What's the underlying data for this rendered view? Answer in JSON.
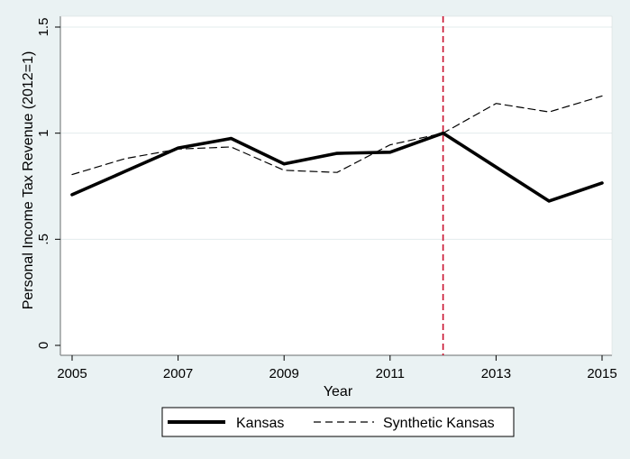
{
  "chart_data": {
    "type": "line",
    "title": "",
    "xlabel": "Year",
    "ylabel": "Personal Income Tax Revenue (2012=1)",
    "x": [
      2005,
      2006,
      2007,
      2008,
      2009,
      2010,
      2011,
      2012,
      2013,
      2014,
      2015
    ],
    "xlim": [
      2005,
      2015
    ],
    "ylim": [
      0,
      1.5
    ],
    "x_ticks": [
      2005,
      2007,
      2009,
      2011,
      2013,
      2015
    ],
    "x_tick_labels": [
      "2005",
      "2007",
      "2009",
      "2011",
      "2013",
      "2015"
    ],
    "y_ticks": [
      0,
      0.5,
      1,
      1.5
    ],
    "y_tick_labels": [
      "0",
      ".5",
      "1",
      "1.5"
    ],
    "grid": true,
    "legend_position": "bottom",
    "reference_line": {
      "x": 2012,
      "style": "dashed",
      "color": "#c8102e"
    },
    "series": [
      {
        "name": "Kansas",
        "style": "solid",
        "color": "#000000",
        "values": [
          0.71,
          0.82,
          0.93,
          0.975,
          0.855,
          0.905,
          0.91,
          1.0,
          0.84,
          0.68,
          0.765
        ]
      },
      {
        "name": "Synthetic Kansas",
        "style": "dashed",
        "color": "#000000",
        "values": [
          0.805,
          0.88,
          0.925,
          0.935,
          0.825,
          0.815,
          0.945,
          1.0,
          1.14,
          1.1,
          1.175
        ]
      }
    ]
  }
}
